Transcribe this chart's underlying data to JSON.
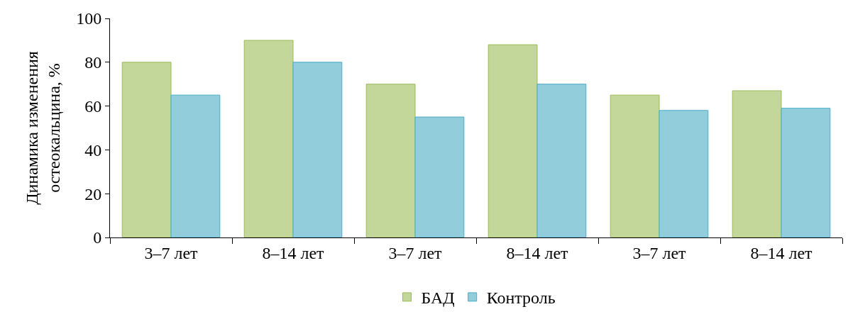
{
  "chart_data": {
    "type": "bar",
    "ylabel": "Динамика изменения\nостеокальцина, %",
    "categories": [
      "3–7 лет",
      "8–14 лет",
      "3–7 лет",
      "8–14 лет",
      "3–7 лет",
      "8–14 лет"
    ],
    "series": [
      {
        "name": "БАД",
        "color": "#c4d79b",
        "values": [
          80,
          90,
          70,
          88,
          65,
          67
        ]
      },
      {
        "name": "Контроль",
        "color": "#92cddc",
        "values": [
          65,
          80,
          55,
          70,
          58,
          59
        ]
      }
    ],
    "ylim": [
      0,
      100
    ],
    "yticks": [
      0,
      20,
      40,
      60,
      80,
      100
    ],
    "grid": false,
    "legend": "bottom"
  }
}
